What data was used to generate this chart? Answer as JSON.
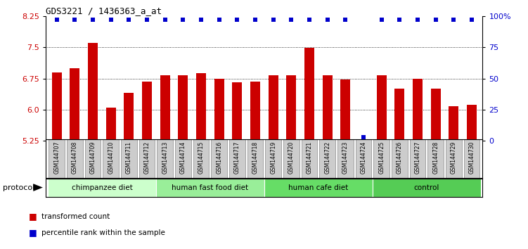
{
  "title": "GDS3221 / 1436363_a_at",
  "samples": [
    "GSM144707",
    "GSM144708",
    "GSM144709",
    "GSM144710",
    "GSM144711",
    "GSM144712",
    "GSM144713",
    "GSM144714",
    "GSM144715",
    "GSM144716",
    "GSM144717",
    "GSM144718",
    "GSM144719",
    "GSM144720",
    "GSM144721",
    "GSM144722",
    "GSM144723",
    "GSM144724",
    "GSM144725",
    "GSM144726",
    "GSM144727",
    "GSM144728",
    "GSM144729",
    "GSM144730"
  ],
  "bar_values": [
    6.9,
    7.0,
    7.6,
    6.05,
    6.4,
    6.68,
    6.83,
    6.83,
    6.88,
    6.75,
    6.65,
    6.68,
    6.83,
    6.83,
    7.48,
    6.83,
    6.73,
    5.28,
    6.83,
    6.5,
    6.75,
    6.5,
    6.08,
    6.12
  ],
  "percentile_values": [
    97,
    97,
    97,
    97,
    97,
    97,
    97,
    97,
    97,
    97,
    97,
    97,
    97,
    97,
    97,
    97,
    97,
    3,
    97,
    97,
    97,
    97,
    97,
    97
  ],
  "bar_color": "#cc0000",
  "percentile_color": "#0000cc",
  "ylim_left": [
    5.25,
    8.25
  ],
  "yticks_left": [
    5.25,
    6.0,
    6.75,
    7.5,
    8.25
  ],
  "ylim_right": [
    0,
    100
  ],
  "yticks_right": [
    0,
    25,
    50,
    75,
    100
  ],
  "ytick_labels_right": [
    "0",
    "25",
    "50",
    "75",
    "100%"
  ],
  "groups": [
    {
      "label": "chimpanzee diet",
      "start": 0,
      "end": 5,
      "color": "#ccffcc"
    },
    {
      "label": "human fast food diet",
      "start": 6,
      "end": 11,
      "color": "#99ee99"
    },
    {
      "label": "human cafe diet",
      "start": 12,
      "end": 17,
      "color": "#66dd66"
    },
    {
      "label": "control",
      "start": 18,
      "end": 23,
      "color": "#55cc55"
    }
  ],
  "protocol_label": "protocol",
  "legend_bar_label": "transformed count",
  "legend_dot_label": "percentile rank within the sample",
  "tick_label_color_left": "#cc0000",
  "tick_label_color_right": "#0000cc",
  "sample_box_color": "#cccccc",
  "sample_box_edge": "#888888",
  "title_font": "monospace",
  "title_fontsize": 9
}
